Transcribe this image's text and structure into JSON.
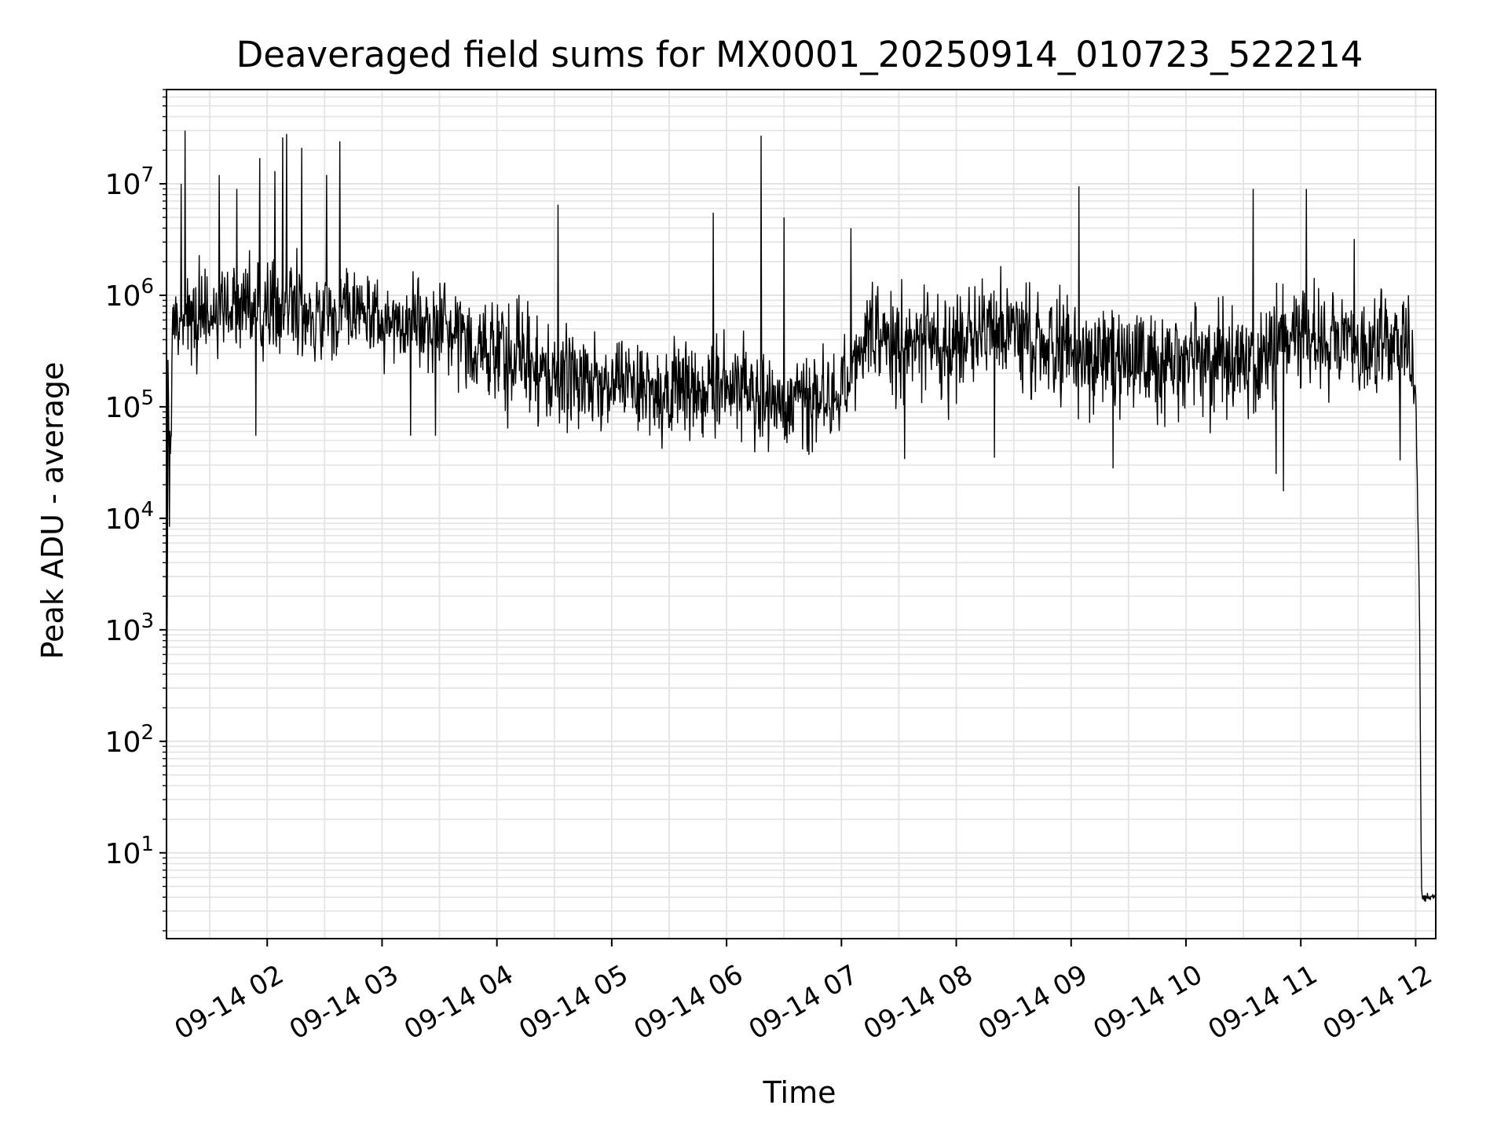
{
  "chart_data": {
    "type": "line",
    "title": "Deaveraged field sums for MX0001_20250914_010723_522214",
    "xlabel": "Time",
    "ylabel": "Peak ADU - average",
    "y_scale": "log",
    "ylim": [
      1.7,
      70000000
    ],
    "xlim": [
      "2025-09-14T01:07:23",
      "2025-09-14T12:10:30"
    ],
    "x_ticks": [
      {
        "label": "09-14 02",
        "time": "2025-09-14T02:00"
      },
      {
        "label": "09-14 03",
        "time": "2025-09-14T03:00"
      },
      {
        "label": "09-14 04",
        "time": "2025-09-14T04:00"
      },
      {
        "label": "09-14 05",
        "time": "2025-09-14T05:00"
      },
      {
        "label": "09-14 06",
        "time": "2025-09-14T06:00"
      },
      {
        "label": "09-14 07",
        "time": "2025-09-14T07:00"
      },
      {
        "label": "09-14 08",
        "time": "2025-09-14T08:00"
      },
      {
        "label": "09-14 09",
        "time": "2025-09-14T09:00"
      },
      {
        "label": "09-14 10",
        "time": "2025-09-14T10:00"
      },
      {
        "label": "09-14 11",
        "time": "2025-09-14T11:00"
      },
      {
        "label": "09-14 12",
        "time": "2025-09-14T12:00"
      }
    ],
    "y_ticks": [
      {
        "base": "10",
        "exp": "1",
        "value": 10
      },
      {
        "base": "10",
        "exp": "2",
        "value": 100
      },
      {
        "base": "10",
        "exp": "3",
        "value": 1000
      },
      {
        "base": "10",
        "exp": "4",
        "value": 10000
      },
      {
        "base": "10",
        "exp": "5",
        "value": 100000
      },
      {
        "base": "10",
        "exp": "6",
        "value": 1000000
      },
      {
        "base": "10",
        "exp": "7",
        "value": 10000000
      }
    ],
    "grid": true,
    "grid_minor": true,
    "line_color": "#000000",
    "series": [
      {
        "baseline": [
          {
            "t": "2025-09-14T01:07",
            "median": 5000,
            "spread": 1.5
          },
          {
            "t": "2025-09-14T01:11",
            "median": 500000,
            "spread": 0.35
          },
          {
            "t": "2025-09-14T01:30",
            "median": 650000,
            "spread": 0.3
          },
          {
            "t": "2025-09-14T02:00",
            "median": 700000,
            "spread": 0.35
          },
          {
            "t": "2025-09-14T02:30",
            "median": 700000,
            "spread": 0.35
          },
          {
            "t": "2025-09-14T03:00",
            "median": 600000,
            "spread": 0.3
          },
          {
            "t": "2025-09-14T03:30",
            "median": 550000,
            "spread": 0.3
          },
          {
            "t": "2025-09-14T04:00",
            "median": 300000,
            "spread": 0.4
          },
          {
            "t": "2025-09-14T04:30",
            "median": 220000,
            "spread": 0.4
          },
          {
            "t": "2025-09-14T05:00",
            "median": 150000,
            "spread": 0.35
          },
          {
            "t": "2025-09-14T05:30",
            "median": 140000,
            "spread": 0.35
          },
          {
            "t": "2025-09-14T06:00",
            "median": 150000,
            "spread": 0.35
          },
          {
            "t": "2025-09-14T06:30",
            "median": 120000,
            "spread": 0.35
          },
          {
            "t": "2025-09-14T07:00",
            "median": 120000,
            "spread": 0.35
          },
          {
            "t": "2025-09-14T07:15",
            "median": 500000,
            "spread": 0.35
          },
          {
            "t": "2025-09-14T07:30",
            "median": 350000,
            "spread": 0.4
          },
          {
            "t": "2025-09-14T08:00",
            "median": 400000,
            "spread": 0.4
          },
          {
            "t": "2025-09-14T08:30",
            "median": 450000,
            "spread": 0.4
          },
          {
            "t": "2025-09-14T09:00",
            "median": 300000,
            "spread": 0.4
          },
          {
            "t": "2025-09-14T09:30",
            "median": 300000,
            "spread": 0.4
          },
          {
            "t": "2025-09-14T10:00",
            "median": 280000,
            "spread": 0.4
          },
          {
            "t": "2025-09-14T10:30",
            "median": 250000,
            "spread": 0.4
          },
          {
            "t": "2025-09-14T11:00",
            "median": 450000,
            "spread": 0.35
          },
          {
            "t": "2025-09-14T11:30",
            "median": 350000,
            "spread": 0.35
          },
          {
            "t": "2025-09-14T11:55",
            "median": 400000,
            "spread": 0.35
          },
          {
            "t": "2025-09-14T12:00",
            "median": 150000,
            "spread": 0.2
          },
          {
            "t": "2025-09-14T12:02",
            "median": 1500,
            "spread": 0.1
          },
          {
            "t": "2025-09-14T12:03",
            "median": 4,
            "spread": 0.03
          },
          {
            "t": "2025-09-14T12:10",
            "median": 4,
            "spread": 0.03
          }
        ],
        "peaks": [
          {
            "t": "2025-09-14T01:15",
            "value": 10000000
          },
          {
            "t": "2025-09-14T01:17",
            "value": 30000000
          },
          {
            "t": "2025-09-14T01:35",
            "value": 12000000
          },
          {
            "t": "2025-09-14T01:44",
            "value": 9000000
          },
          {
            "t": "2025-09-14T01:56",
            "value": 17000000
          },
          {
            "t": "2025-09-14T02:04",
            "value": 13000000
          },
          {
            "t": "2025-09-14T02:08",
            "value": 26000000
          },
          {
            "t": "2025-09-14T02:10",
            "value": 28000000
          },
          {
            "t": "2025-09-14T02:18",
            "value": 21000000
          },
          {
            "t": "2025-09-14T02:31",
            "value": 12000000
          },
          {
            "t": "2025-09-14T02:38",
            "value": 24000000
          },
          {
            "t": "2025-09-14T04:32",
            "value": 6500000
          },
          {
            "t": "2025-09-14T05:53",
            "value": 5500000
          },
          {
            "t": "2025-09-14T06:18",
            "value": 27000000
          },
          {
            "t": "2025-09-14T06:30",
            "value": 5000000
          },
          {
            "t": "2025-09-14T07:05",
            "value": 4000000
          },
          {
            "t": "2025-09-14T09:04",
            "value": 9500000
          },
          {
            "t": "2025-09-14T10:35",
            "value": 9000000
          },
          {
            "t": "2025-09-14T11:03",
            "value": 9000000
          },
          {
            "t": "2025-09-14T11:28",
            "value": 3200000
          }
        ],
        "dips": [
          {
            "t": "2025-09-14T01:08",
            "value": 5500
          },
          {
            "t": "2025-09-14T01:54",
            "value": 55000
          },
          {
            "t": "2025-09-14T03:15",
            "value": 55000
          },
          {
            "t": "2025-09-14T03:28",
            "value": 55000
          },
          {
            "t": "2025-09-14T07:33",
            "value": 34000
          },
          {
            "t": "2025-09-14T08:20",
            "value": 35000
          },
          {
            "t": "2025-09-14T09:22",
            "value": 28000
          },
          {
            "t": "2025-09-14T10:47",
            "value": 25000
          },
          {
            "t": "2025-09-14T10:51",
            "value": 17500
          },
          {
            "t": "2025-09-14T11:52",
            "value": 33000
          }
        ]
      }
    ]
  }
}
